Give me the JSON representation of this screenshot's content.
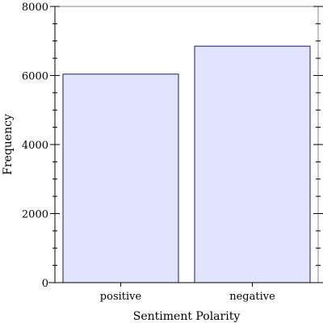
{
  "chart_data": {
    "type": "bar",
    "categories": [
      "positive",
      "negative"
    ],
    "values": [
      6040,
      6850
    ],
    "xlabel": "Sentiment Polarity",
    "ylabel": "Frequency",
    "ylim": [
      0,
      8000
    ],
    "yticks": [
      0,
      2000,
      4000,
      6000,
      8000
    ],
    "grid": false,
    "colors": {
      "bar_fill": "#e0e4ff",
      "bar_stroke": "#1a1a6e",
      "axis": "#000000"
    }
  }
}
